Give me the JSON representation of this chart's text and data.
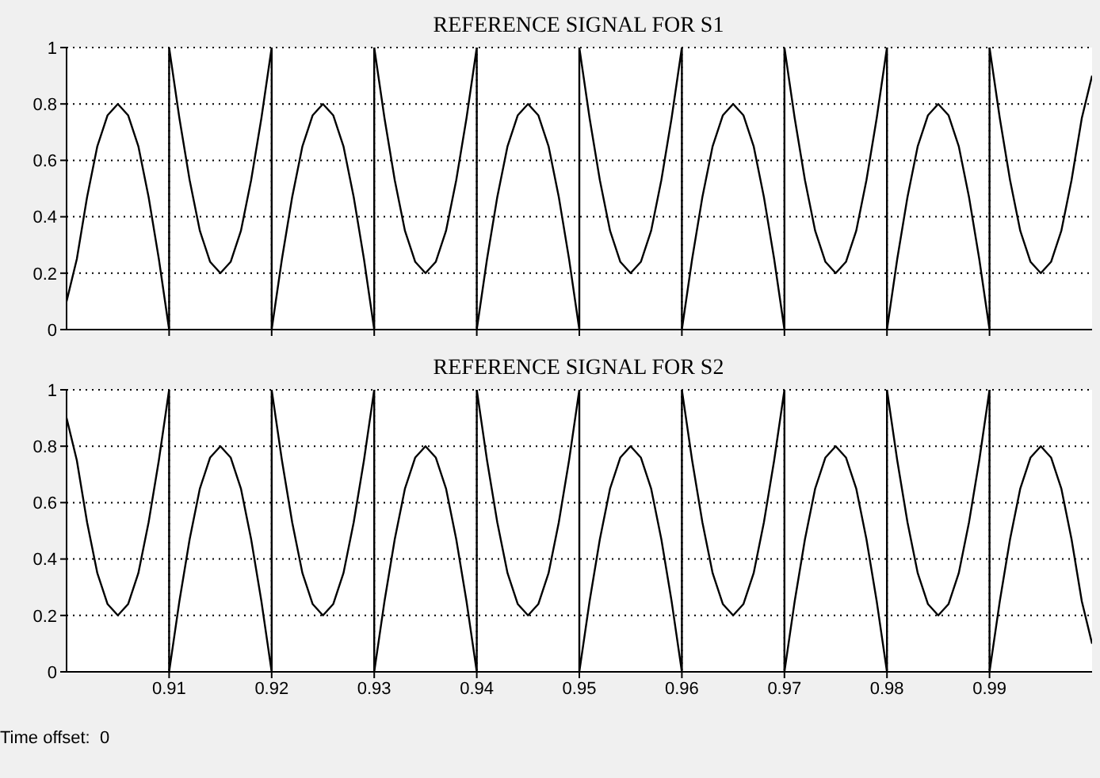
{
  "chart_data": [
    {
      "type": "line",
      "title": "REFERENCE SIGNAL FOR S1",
      "x": [
        0.9,
        0.901,
        0.902,
        0.903,
        0.904,
        0.905,
        0.906,
        0.907,
        0.908,
        0.909,
        0.91,
        0.91,
        0.911,
        0.912,
        0.913,
        0.914,
        0.915,
        0.916,
        0.917,
        0.918,
        0.919,
        0.92,
        0.92,
        0.921,
        0.922,
        0.923,
        0.924,
        0.925,
        0.926,
        0.927,
        0.928,
        0.929,
        0.93,
        0.93,
        0.931,
        0.932,
        0.933,
        0.934,
        0.935,
        0.936,
        0.937,
        0.938,
        0.939,
        0.94,
        0.94,
        0.941,
        0.942,
        0.943,
        0.944,
        0.945,
        0.946,
        0.947,
        0.948,
        0.949,
        0.95,
        0.95,
        0.951,
        0.952,
        0.953,
        0.954,
        0.955,
        0.956,
        0.957,
        0.958,
        0.959,
        0.96,
        0.96,
        0.961,
        0.962,
        0.963,
        0.964,
        0.965,
        0.966,
        0.967,
        0.968,
        0.969,
        0.97,
        0.97,
        0.971,
        0.972,
        0.973,
        0.974,
        0.975,
        0.976,
        0.977,
        0.978,
        0.979,
        0.98,
        0.98,
        0.981,
        0.982,
        0.983,
        0.984,
        0.985,
        0.986,
        0.987,
        0.988,
        0.989,
        0.99,
        0.99,
        0.991,
        0.992,
        0.993,
        0.994,
        0.995,
        0.996,
        0.997,
        0.998,
        0.999,
        1
      ],
      "series": [
        {
          "color": "#000000",
          "values": [
            0.1,
            0.25,
            0.47,
            0.65,
            0.76,
            0.8,
            0.76,
            0.65,
            0.47,
            0.25,
            0,
            1,
            0.75,
            0.53,
            0.35,
            0.24,
            0.2,
            0.24,
            0.35,
            0.53,
            0.75,
            1,
            0,
            0.25,
            0.47,
            0.65,
            0.76,
            0.8,
            0.76,
            0.65,
            0.47,
            0.25,
            0,
            1,
            0.75,
            0.53,
            0.35,
            0.24,
            0.2,
            0.24,
            0.35,
            0.53,
            0.75,
            1,
            0,
            0.25,
            0.47,
            0.65,
            0.76,
            0.8,
            0.76,
            0.65,
            0.47,
            0.25,
            0,
            1,
            0.75,
            0.53,
            0.35,
            0.24,
            0.2,
            0.24,
            0.35,
            0.53,
            0.75,
            1,
            0,
            0.25,
            0.47,
            0.65,
            0.76,
            0.8,
            0.76,
            0.65,
            0.47,
            0.25,
            0,
            1,
            0.75,
            0.53,
            0.35,
            0.24,
            0.2,
            0.24,
            0.35,
            0.53,
            0.75,
            1,
            0,
            0.25,
            0.47,
            0.65,
            0.76,
            0.8,
            0.76,
            0.65,
            0.47,
            0.25,
            0,
            1,
            0.75,
            0.53,
            0.35,
            0.24,
            0.2,
            0.24,
            0.35,
            0.53,
            0.75,
            0.9
          ]
        }
      ],
      "xlim": [
        0.9,
        1
      ],
      "xticks": [
        0.91,
        0.92,
        0.93,
        0.94,
        0.95,
        0.96,
        0.97,
        0.98,
        0.99
      ],
      "ylim": [
        0,
        1
      ],
      "yticks": [
        0,
        0.2,
        0.4,
        0.6,
        0.8,
        1
      ],
      "grid": true,
      "tick_labels": "y"
    },
    {
      "type": "line",
      "title": "REFERENCE SIGNAL FOR S2",
      "x": [
        0.9,
        0.901,
        0.902,
        0.903,
        0.904,
        0.905,
        0.906,
        0.907,
        0.908,
        0.909,
        0.91,
        0.91,
        0.911,
        0.912,
        0.913,
        0.914,
        0.915,
        0.916,
        0.917,
        0.918,
        0.919,
        0.92,
        0.92,
        0.921,
        0.922,
        0.923,
        0.924,
        0.925,
        0.926,
        0.927,
        0.928,
        0.929,
        0.93,
        0.93,
        0.931,
        0.932,
        0.933,
        0.934,
        0.935,
        0.936,
        0.937,
        0.938,
        0.939,
        0.94,
        0.94,
        0.941,
        0.942,
        0.943,
        0.944,
        0.945,
        0.946,
        0.947,
        0.948,
        0.949,
        0.95,
        0.95,
        0.951,
        0.952,
        0.953,
        0.954,
        0.955,
        0.956,
        0.957,
        0.958,
        0.959,
        0.96,
        0.96,
        0.961,
        0.962,
        0.963,
        0.964,
        0.965,
        0.966,
        0.967,
        0.968,
        0.969,
        0.97,
        0.97,
        0.971,
        0.972,
        0.973,
        0.974,
        0.975,
        0.976,
        0.977,
        0.978,
        0.979,
        0.98,
        0.98,
        0.981,
        0.982,
        0.983,
        0.984,
        0.985,
        0.986,
        0.987,
        0.988,
        0.989,
        0.99,
        0.99,
        0.991,
        0.992,
        0.993,
        0.994,
        0.995,
        0.996,
        0.997,
        0.998,
        0.999,
        1
      ],
      "series": [
        {
          "color": "#000000",
          "values": [
            0.9,
            0.75,
            0.53,
            0.35,
            0.24,
            0.2,
            0.24,
            0.35,
            0.53,
            0.75,
            1,
            0,
            0.25,
            0.47,
            0.65,
            0.76,
            0.8,
            0.76,
            0.65,
            0.47,
            0.25,
            0,
            1,
            0.75,
            0.53,
            0.35,
            0.24,
            0.2,
            0.24,
            0.35,
            0.53,
            0.75,
            1,
            0,
            0.25,
            0.47,
            0.65,
            0.76,
            0.8,
            0.76,
            0.65,
            0.47,
            0.25,
            0,
            1,
            0.75,
            0.53,
            0.35,
            0.24,
            0.2,
            0.24,
            0.35,
            0.53,
            0.75,
            1,
            0,
            0.25,
            0.47,
            0.65,
            0.76,
            0.8,
            0.76,
            0.65,
            0.47,
            0.25,
            0,
            1,
            0.75,
            0.53,
            0.35,
            0.24,
            0.2,
            0.24,
            0.35,
            0.53,
            0.75,
            1,
            0,
            0.25,
            0.47,
            0.65,
            0.76,
            0.8,
            0.76,
            0.65,
            0.47,
            0.25,
            0,
            1,
            0.75,
            0.53,
            0.35,
            0.24,
            0.2,
            0.24,
            0.35,
            0.53,
            0.75,
            1,
            0,
            0.25,
            0.47,
            0.65,
            0.76,
            0.8,
            0.76,
            0.65,
            0.47,
            0.25,
            0.1
          ]
        }
      ],
      "xlim": [
        0.9,
        1
      ],
      "xticks": [
        0.91,
        0.92,
        0.93,
        0.94,
        0.95,
        0.96,
        0.97,
        0.98,
        0.99
      ],
      "ylim": [
        0,
        1
      ],
      "yticks": [
        0,
        0.2,
        0.4,
        0.6,
        0.8,
        1
      ],
      "grid": true,
      "annotations": [
        "Time offset:  0"
      ]
    }
  ]
}
